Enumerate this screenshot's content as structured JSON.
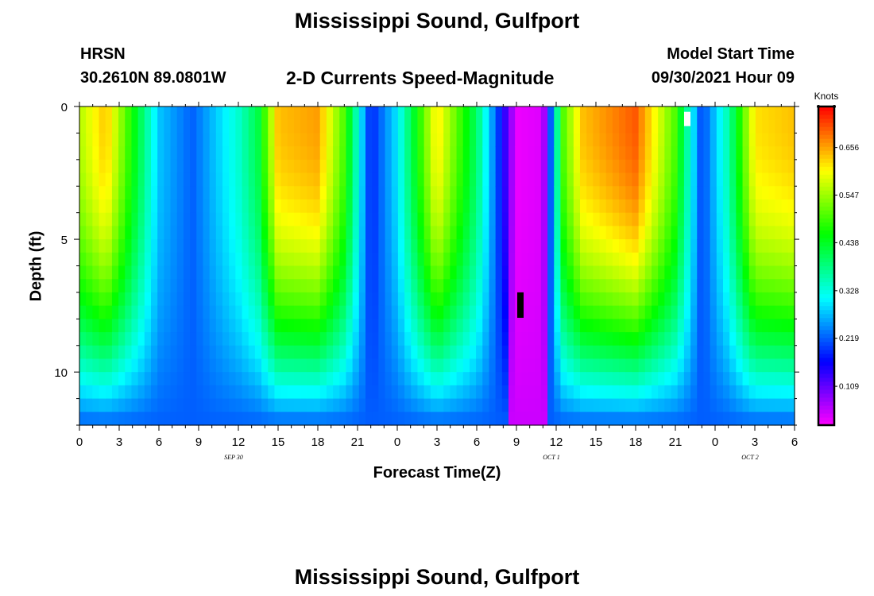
{
  "page": {
    "title": "Mississippi Sound, Gulfport",
    "footer_title": "Mississippi Sound, Gulfport",
    "station": "HRSN",
    "coords": "30.2610N  89.0801W",
    "product": "2-D Currents Speed-Magnitude",
    "model_label": "Model Start Time",
    "model_time": "09/30/2021 Hour 09"
  },
  "chart_data": {
    "type": "heatmap",
    "xlabel": "Forecast Time(Z)",
    "ylabel": "Depth (ft)",
    "x_ticks": [
      {
        "t": 0,
        "label": "0"
      },
      {
        "t": 3,
        "label": "3"
      },
      {
        "t": 6,
        "label": "6"
      },
      {
        "t": 9,
        "label": "9"
      },
      {
        "t": 12,
        "label": "12"
      },
      {
        "t": 15,
        "label": "15"
      },
      {
        "t": 18,
        "label": "18"
      },
      {
        "t": 21,
        "label": "21"
      },
      {
        "t": 24,
        "label": "0"
      },
      {
        "t": 27,
        "label": "3"
      },
      {
        "t": 30,
        "label": "6"
      },
      {
        "t": 33,
        "label": "9"
      },
      {
        "t": 36,
        "label": "12"
      },
      {
        "t": 39,
        "label": "15"
      },
      {
        "t": 42,
        "label": "18"
      },
      {
        "t": 45,
        "label": "21"
      },
      {
        "t": 48,
        "label": "0"
      },
      {
        "t": 51,
        "label": "3"
      },
      {
        "t": 54,
        "label": "6"
      }
    ],
    "date_labels": [
      {
        "t": 12,
        "label": "SEP 30"
      },
      {
        "t": 36,
        "label": "OCT 1"
      },
      {
        "t": 51,
        "label": "OCT 2"
      }
    ],
    "y_ticks": [
      {
        "d": 0,
        "label": "0"
      },
      {
        "d": 5,
        "label": "5"
      },
      {
        "d": 10,
        "label": "10"
      }
    ],
    "xlim": [
      0,
      54
    ],
    "ylim": [
      0,
      12
    ],
    "colorbar": {
      "unit": "Knots",
      "range": [
        0.02,
        0.75
      ],
      "ticks": [
        {
          "v": 0.109,
          "label": "0.109"
        },
        {
          "v": 0.219,
          "label": "0.219"
        },
        {
          "v": 0.328,
          "label": "0.328"
        },
        {
          "v": 0.438,
          "label": "0.438"
        },
        {
          "v": 0.547,
          "label": "0.547"
        },
        {
          "v": 0.656,
          "label": "0.656"
        }
      ]
    },
    "depths_ft": [
      0.25,
      0.75,
      1.25,
      1.75,
      2.25,
      2.75,
      3.25,
      3.75,
      4.25,
      4.75,
      5.25,
      5.75,
      6.25,
      6.75,
      7.25,
      7.75,
      8.25,
      8.75,
      9.25,
      9.75,
      10.25,
      10.75,
      11.25,
      11.75
    ],
    "speed_model": {
      "times_hr": [
        0,
        2,
        4.5,
        6,
        8.5,
        12,
        13.5,
        15,
        18,
        20,
        22,
        24,
        27,
        30,
        33,
        35,
        36.5,
        38,
        42,
        45,
        47,
        49,
        51,
        54
      ],
      "surface_knots": [
        0.56,
        0.64,
        0.42,
        0.28,
        0.22,
        0.34,
        0.42,
        0.64,
        0.66,
        0.5,
        0.18,
        0.3,
        0.62,
        0.4,
        0.03,
        0.04,
        0.5,
        0.64,
        0.7,
        0.5,
        0.2,
        0.36,
        0.62,
        0.64
      ],
      "bottom_knots": 0.22,
      "bottom_trough_knots": 0.05
    },
    "markers": [
      {
        "t": 45.9,
        "d": 0.2,
        "color": "#ffffff"
      },
      {
        "t": 33.3,
        "d": 7.0,
        "color": "#000000"
      }
    ]
  }
}
